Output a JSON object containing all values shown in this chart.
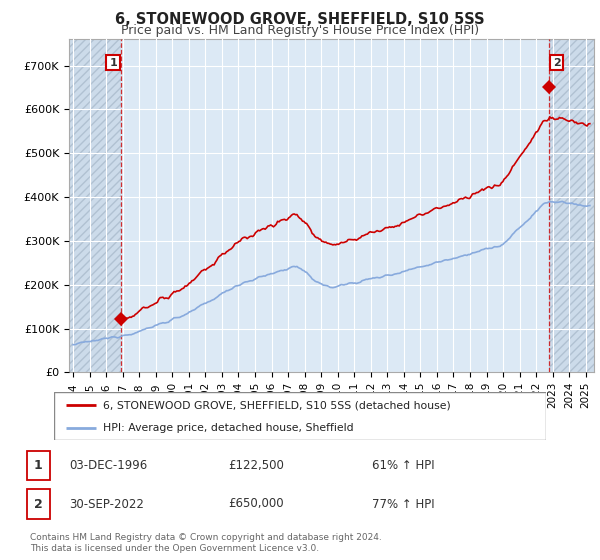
{
  "title": "6, STONEWOOD GROVE, SHEFFIELD, S10 5SS",
  "subtitle": "Price paid vs. HM Land Registry's House Price Index (HPI)",
  "ylim": [
    0,
    760000
  ],
  "xlim_start": 1993.75,
  "xlim_end": 2025.5,
  "yticks": [
    0,
    100000,
    200000,
    300000,
    400000,
    500000,
    600000,
    700000
  ],
  "ytick_labels": [
    "£0",
    "£100K",
    "£200K",
    "£300K",
    "£400K",
    "£500K",
    "£600K",
    "£700K"
  ],
  "sale1_x": 1996.917,
  "sale1_y": 122500,
  "sale2_x": 2022.75,
  "sale2_y": 650000,
  "sale_color": "#cc0000",
  "hpi_color": "#88aadd",
  "legend_label1": "6, STONEWOOD GROVE, SHEFFIELD, S10 5SS (detached house)",
  "legend_label2": "HPI: Average price, detached house, Sheffield",
  "bg_color": "#dce9f5",
  "grid_color": "#ffffff",
  "footnote": "Contains HM Land Registry data © Crown copyright and database right 2024.\nThis data is licensed under the Open Government Licence v3.0."
}
